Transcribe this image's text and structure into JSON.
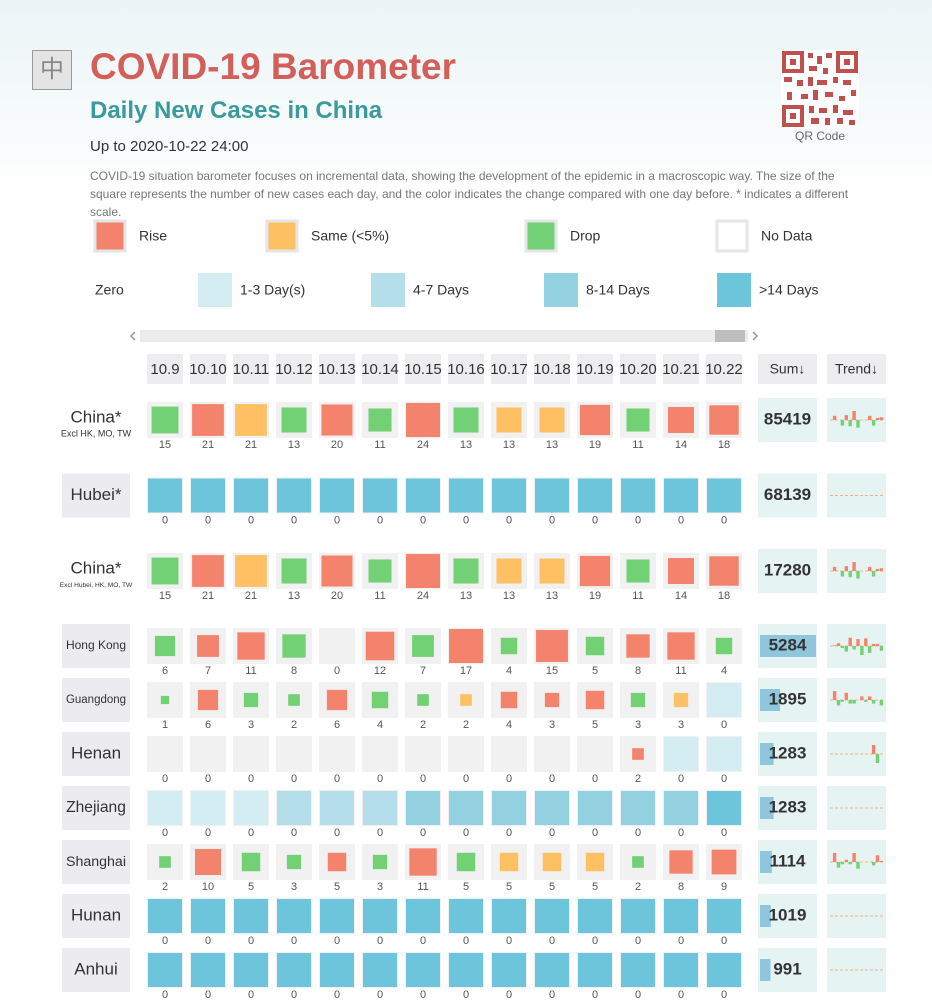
{
  "header": {
    "lang_button": "中",
    "title": "COVID-19 Barometer",
    "subtitle": "Daily New Cases in China",
    "updated": "Up to 2020-10-22 24:00",
    "description": "COVID-19 situation barometer focuses on incremental data, showing the development of the epidemic in a macroscopic way. The size of the square represents the number of new cases each day, and the color indicates the change compared with one day before. * indicates a different scale.",
    "qr_label": "QR Code"
  },
  "legend": {
    "change": [
      {
        "label": "Rise",
        "color": "#f4836e"
      },
      {
        "label": "Same (<5%)",
        "color": "#fdc164"
      },
      {
        "label": "Drop",
        "color": "#72d175"
      },
      {
        "label": "No Data",
        "color": "#ffffff"
      }
    ],
    "zero": [
      {
        "label": "Zero",
        "color": null
      },
      {
        "label": "1-3 Day(s)",
        "color": "#d4edf3"
      },
      {
        "label": "4-7 Days",
        "color": "#b4dfea"
      },
      {
        "label": "8-14 Days",
        "color": "#93d1e0"
      },
      {
        "label": ">14 Days",
        "color": "#6cc5da"
      }
    ]
  },
  "table": {
    "dates": [
      "10.9",
      "10.10",
      "10.11",
      "10.12",
      "10.13",
      "10.14",
      "10.15",
      "10.16",
      "10.17",
      "10.18",
      "10.19",
      "10.20",
      "10.21",
      "10.22"
    ],
    "sum_header": "Sum↓",
    "trend_header": "Trend↓",
    "rows": [
      {
        "name": "China*",
        "note": "Excl HK, MO, TW",
        "values": [
          15,
          21,
          21,
          13,
          20,
          11,
          24,
          13,
          13,
          13,
          19,
          11,
          14,
          18
        ],
        "colors": [
          "#72d175",
          "#f4836e",
          "#fdc164",
          "#72d175",
          "#f4836e",
          "#72d175",
          "#f4836e",
          "#72d175",
          "#fdc164",
          "#fdc164",
          "#f4836e",
          "#72d175",
          "#f4836e",
          "#f4836e"
        ],
        "sum": 85419
      },
      {
        "name": "Hubei*",
        "values": [
          0,
          0,
          0,
          0,
          0,
          0,
          0,
          0,
          0,
          0,
          0,
          0,
          0,
          0
        ],
        "colors": [
          "#6cc5da",
          "#6cc5da",
          "#6cc5da",
          "#6cc5da",
          "#6cc5da",
          "#6cc5da",
          "#6cc5da",
          "#6cc5da",
          "#6cc5da",
          "#6cc5da",
          "#6cc5da",
          "#6cc5da",
          "#6cc5da",
          "#6cc5da"
        ],
        "sum": 68139
      },
      {
        "name": "China*",
        "note": "Excl Hubei, HK, MO, TW",
        "values": [
          15,
          21,
          21,
          13,
          20,
          11,
          24,
          13,
          13,
          13,
          19,
          11,
          14,
          18
        ],
        "colors": [
          "#72d175",
          "#f4836e",
          "#fdc164",
          "#72d175",
          "#f4836e",
          "#72d175",
          "#f4836e",
          "#72d175",
          "#fdc164",
          "#fdc164",
          "#f4836e",
          "#72d175",
          "#f4836e",
          "#f4836e"
        ],
        "sum": 17280
      },
      {
        "name": "Hong Kong",
        "values": [
          6,
          7,
          11,
          8,
          0,
          12,
          7,
          17,
          4,
          15,
          5,
          8,
          11,
          4
        ],
        "colors": [
          "#72d175",
          "#f4836e",
          "#f4836e",
          "#72d175",
          null,
          "#f4836e",
          "#72d175",
          "#f4836e",
          "#72d175",
          "#f4836e",
          "#72d175",
          "#f4836e",
          "#f4836e",
          "#72d175"
        ],
        "sum": 5284
      },
      {
        "name": "Guangdong",
        "values": [
          1,
          6,
          3,
          2,
          6,
          4,
          2,
          2,
          4,
          3,
          5,
          3,
          3,
          0
        ],
        "colors": [
          "#72d175",
          "#f4836e",
          "#72d175",
          "#72d175",
          "#f4836e",
          "#72d175",
          "#72d175",
          "#fdc164",
          "#f4836e",
          "#f4836e",
          "#f4836e",
          "#72d175",
          "#fdc164",
          "#d4edf3"
        ],
        "sum": 1895
      },
      {
        "name": "Henan",
        "values": [
          0,
          0,
          0,
          0,
          0,
          0,
          0,
          0,
          0,
          0,
          0,
          2,
          0,
          0
        ],
        "colors": [
          null,
          null,
          null,
          null,
          null,
          null,
          null,
          null,
          null,
          null,
          null,
          "#f4836e",
          "#d4edf3",
          "#d4edf3"
        ],
        "sum": 1283
      },
      {
        "name": "Zhejiang",
        "values": [
          0,
          0,
          0,
          0,
          0,
          0,
          0,
          0,
          0,
          0,
          0,
          0,
          0,
          0
        ],
        "colors": [
          "#d4edf3",
          "#d4edf3",
          "#d4edf3",
          "#b4dfea",
          "#b4dfea",
          "#b4dfea",
          "#93d1e0",
          "#93d1e0",
          "#93d1e0",
          "#93d1e0",
          "#93d1e0",
          "#93d1e0",
          "#93d1e0",
          "#6cc5da"
        ],
        "sum": 1283
      },
      {
        "name": "Shanghai",
        "values": [
          2,
          10,
          5,
          3,
          5,
          3,
          11,
          5,
          5,
          5,
          5,
          2,
          8,
          9
        ],
        "colors": [
          "#72d175",
          "#f4836e",
          "#72d175",
          "#72d175",
          "#f4836e",
          "#72d175",
          "#f4836e",
          "#72d175",
          "#fdc164",
          "#fdc164",
          "#fdc164",
          "#72d175",
          "#f4836e",
          "#f4836e"
        ],
        "sum": 1114
      },
      {
        "name": "Hunan",
        "values": [
          0,
          0,
          0,
          0,
          0,
          0,
          0,
          0,
          0,
          0,
          0,
          0,
          0,
          0
        ],
        "colors": [
          "#6cc5da",
          "#6cc5da",
          "#6cc5da",
          "#6cc5da",
          "#6cc5da",
          "#6cc5da",
          "#6cc5da",
          "#6cc5da",
          "#6cc5da",
          "#6cc5da",
          "#6cc5da",
          "#6cc5da",
          "#6cc5da",
          "#6cc5da"
        ],
        "sum": 1019
      },
      {
        "name": "Anhui",
        "values": [
          0,
          0,
          0,
          0,
          0,
          0,
          0,
          0,
          0,
          0,
          0,
          0,
          0,
          0
        ],
        "colors": [
          "#6cc5da",
          "#6cc5da",
          "#6cc5da",
          "#6cc5da",
          "#6cc5da",
          "#6cc5da",
          "#6cc5da",
          "#6cc5da",
          "#6cc5da",
          "#6cc5da",
          "#6cc5da",
          "#6cc5da",
          "#6cc5da",
          "#6cc5da"
        ],
        "sum": 991
      }
    ]
  }
}
